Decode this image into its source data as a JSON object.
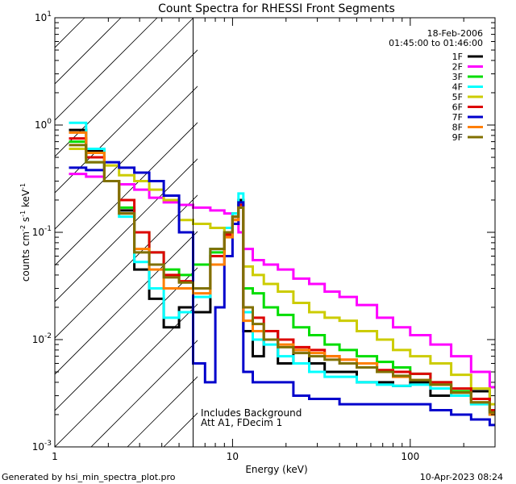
{
  "chart_data": {
    "type": "line",
    "title": "Count Spectra for RHESSI Front Segments",
    "xlabel": "Energy (keV)",
    "ylabel_parts": {
      "base": "counts cm",
      "sup1": "-2",
      "mid1": " s",
      "sup2": "-1",
      "mid2": " keV",
      "sup3": "-1"
    },
    "xscale": "log",
    "yscale": "log",
    "xlim": [
      1,
      300
    ],
    "ylim": [
      0.001,
      10
    ],
    "x_ticks": [
      {
        "value": 1,
        "label": "1"
      },
      {
        "value": 10,
        "label": "10"
      },
      {
        "value": 100,
        "label": "100"
      }
    ],
    "y_ticks": [
      {
        "value": 0.001,
        "base": "10",
        "exp": "-3"
      },
      {
        "value": 0.01,
        "base": "10",
        "exp": "-2"
      },
      {
        "value": 0.1,
        "base": "10",
        "exp": "-1"
      },
      {
        "value": 1,
        "base": "10",
        "exp": "0"
      },
      {
        "value": 10,
        "base": "10",
        "exp": "1"
      }
    ],
    "vertical_line_x": 6,
    "hatched_region": [
      1,
      6
    ],
    "legend_location": "top-right",
    "header_lines": [
      "18-Feb-2006",
      "01:45:00 to 01:46:00"
    ],
    "annotations": [
      "Includes Background",
      "Att A1, FDecim 1"
    ],
    "footer_left": "Generated by hsi_min_spectra_plot.pro",
    "footer_right": "10-Apr-2023 08:24",
    "series": [
      {
        "name": "1F",
        "color": "#000000",
        "points": [
          [
            1.2,
            0.9
          ],
          [
            1.5,
            0.58
          ],
          [
            1.9,
            0.3
          ],
          [
            2.3,
            0.16
          ],
          [
            2.8,
            0.045
          ],
          [
            3.4,
            0.024
          ],
          [
            4.1,
            0.013
          ],
          [
            5,
            0.02
          ],
          [
            6,
            0.018
          ],
          [
            7.5,
            0.07
          ],
          [
            9,
            0.1
          ],
          [
            10,
            0.14
          ],
          [
            10.8,
            0.2
          ],
          [
            11.5,
            0.012
          ],
          [
            13,
            0.007
          ],
          [
            15,
            0.012
          ],
          [
            18,
            0.006
          ],
          [
            22,
            0.008
          ],
          [
            27,
            0.006
          ],
          [
            33,
            0.005
          ],
          [
            40,
            0.005
          ],
          [
            50,
            0.004
          ],
          [
            65,
            0.004
          ],
          [
            80,
            0.0037
          ],
          [
            100,
            0.004
          ],
          [
            130,
            0.003
          ],
          [
            170,
            0.003
          ],
          [
            220,
            0.0033
          ],
          [
            280,
            0.002
          ]
        ]
      },
      {
        "name": "2F",
        "color": "#ff00ff",
        "points": [
          [
            1.2,
            0.35
          ],
          [
            1.5,
            0.33
          ],
          [
            1.9,
            0.3
          ],
          [
            2.3,
            0.28
          ],
          [
            2.8,
            0.25
          ],
          [
            3.4,
            0.21
          ],
          [
            4.1,
            0.19
          ],
          [
            5,
            0.18
          ],
          [
            6,
            0.17
          ],
          [
            7.5,
            0.16
          ],
          [
            9,
            0.15
          ],
          [
            10,
            0.13
          ],
          [
            10.8,
            0.1
          ],
          [
            11.5,
            0.07
          ],
          [
            13,
            0.055
          ],
          [
            15,
            0.05
          ],
          [
            18,
            0.045
          ],
          [
            22,
            0.037
          ],
          [
            27,
            0.033
          ],
          [
            33,
            0.028
          ],
          [
            40,
            0.025
          ],
          [
            50,
            0.021
          ],
          [
            65,
            0.016
          ],
          [
            80,
            0.013
          ],
          [
            100,
            0.011
          ],
          [
            130,
            0.009
          ],
          [
            170,
            0.007
          ],
          [
            220,
            0.005
          ],
          [
            280,
            0.0036
          ]
        ]
      },
      {
        "name": "3F",
        "color": "#00dd00",
        "points": [
          [
            1.2,
            0.7
          ],
          [
            1.5,
            0.45
          ],
          [
            1.9,
            0.3
          ],
          [
            2.3,
            0.17
          ],
          [
            2.8,
            0.1
          ],
          [
            3.4,
            0.065
          ],
          [
            4.1,
            0.045
          ],
          [
            5,
            0.04
          ],
          [
            6,
            0.05
          ],
          [
            7.5,
            0.065
          ],
          [
            9,
            0.1
          ],
          [
            10,
            0.15
          ],
          [
            10.8,
            0.18
          ],
          [
            11.5,
            0.03
          ],
          [
            13,
            0.027
          ],
          [
            15,
            0.02
          ],
          [
            18,
            0.017
          ],
          [
            22,
            0.013
          ],
          [
            27,
            0.011
          ],
          [
            33,
            0.009
          ],
          [
            40,
            0.008
          ],
          [
            50,
            0.007
          ],
          [
            65,
            0.0062
          ],
          [
            80,
            0.0055
          ],
          [
            100,
            0.0048
          ],
          [
            130,
            0.004
          ],
          [
            170,
            0.0033
          ],
          [
            220,
            0.0028
          ],
          [
            280,
            0.0022
          ]
        ]
      },
      {
        "name": "4F",
        "color": "#00ffff",
        "points": [
          [
            1.2,
            1.05
          ],
          [
            1.5,
            0.6
          ],
          [
            1.9,
            0.3
          ],
          [
            2.3,
            0.14
          ],
          [
            2.8,
            0.053
          ],
          [
            3.4,
            0.03
          ],
          [
            4.1,
            0.016
          ],
          [
            5,
            0.018
          ],
          [
            6,
            0.025
          ],
          [
            7.5,
            0.07
          ],
          [
            9,
            0.11
          ],
          [
            10,
            0.15
          ],
          [
            10.8,
            0.23
          ],
          [
            11.5,
            0.018
          ],
          [
            13,
            0.01
          ],
          [
            15,
            0.009
          ],
          [
            18,
            0.007
          ],
          [
            22,
            0.006
          ],
          [
            27,
            0.005
          ],
          [
            33,
            0.0045
          ],
          [
            40,
            0.0045
          ],
          [
            50,
            0.004
          ],
          [
            65,
            0.0038
          ],
          [
            80,
            0.0037
          ],
          [
            100,
            0.0038
          ],
          [
            130,
            0.0035
          ],
          [
            170,
            0.003
          ],
          [
            220,
            0.0025
          ],
          [
            280,
            0.002
          ]
        ]
      },
      {
        "name": "5F",
        "color": "#cccc00",
        "points": [
          [
            1.2,
            0.6
          ],
          [
            1.5,
            0.5
          ],
          [
            1.9,
            0.42
          ],
          [
            2.3,
            0.34
          ],
          [
            2.8,
            0.3
          ],
          [
            3.4,
            0.25
          ],
          [
            4.1,
            0.2
          ],
          [
            5,
            0.13
          ],
          [
            6,
            0.12
          ],
          [
            7.5,
            0.11
          ],
          [
            9,
            0.1
          ],
          [
            10,
            0.13
          ],
          [
            10.8,
            0.17
          ],
          [
            11.5,
            0.048
          ],
          [
            13,
            0.04
          ],
          [
            15,
            0.033
          ],
          [
            18,
            0.028
          ],
          [
            22,
            0.022
          ],
          [
            27,
            0.018
          ],
          [
            33,
            0.016
          ],
          [
            40,
            0.015
          ],
          [
            50,
            0.012
          ],
          [
            65,
            0.01
          ],
          [
            80,
            0.008
          ],
          [
            100,
            0.007
          ],
          [
            130,
            0.006
          ],
          [
            170,
            0.0047
          ],
          [
            220,
            0.0035
          ],
          [
            280,
            0.0025
          ]
        ]
      },
      {
        "name": "6F",
        "color": "#dd0000",
        "points": [
          [
            1.2,
            0.75
          ],
          [
            1.5,
            0.5
          ],
          [
            1.9,
            0.3
          ],
          [
            2.3,
            0.2
          ],
          [
            2.8,
            0.1
          ],
          [
            3.4,
            0.065
          ],
          [
            4.1,
            0.04
          ],
          [
            5,
            0.035
          ],
          [
            6,
            0.03
          ],
          [
            7.5,
            0.06
          ],
          [
            9,
            0.095
          ],
          [
            10,
            0.14
          ],
          [
            10.8,
            0.18
          ],
          [
            11.5,
            0.02
          ],
          [
            13,
            0.016
          ],
          [
            15,
            0.012
          ],
          [
            18,
            0.01
          ],
          [
            22,
            0.0085
          ],
          [
            27,
            0.008
          ],
          [
            33,
            0.007
          ],
          [
            40,
            0.0065
          ],
          [
            50,
            0.006
          ],
          [
            65,
            0.0052
          ],
          [
            80,
            0.005
          ],
          [
            100,
            0.0048
          ],
          [
            130,
            0.004
          ],
          [
            170,
            0.0035
          ],
          [
            220,
            0.0028
          ],
          [
            280,
            0.0022
          ]
        ]
      },
      {
        "name": "7F",
        "color": "#0000cc",
        "points": [
          [
            1.2,
            0.4
          ],
          [
            1.5,
            0.38
          ],
          [
            1.9,
            0.45
          ],
          [
            2.3,
            0.4
          ],
          [
            2.8,
            0.36
          ],
          [
            3.4,
            0.3
          ],
          [
            4.1,
            0.22
          ],
          [
            5,
            0.1
          ],
          [
            6,
            0.006
          ],
          [
            7,
            0.004
          ],
          [
            8,
            0.02
          ],
          [
            9,
            0.06
          ],
          [
            10,
            0.12
          ],
          [
            10.8,
            0.19
          ],
          [
            11.5,
            0.005
          ],
          [
            13,
            0.004
          ],
          [
            15,
            0.004
          ],
          [
            18,
            0.004
          ],
          [
            22,
            0.003
          ],
          [
            27,
            0.0028
          ],
          [
            33,
            0.0028
          ],
          [
            40,
            0.0025
          ],
          [
            50,
            0.0025
          ],
          [
            65,
            0.0025
          ],
          [
            80,
            0.0025
          ],
          [
            100,
            0.0025
          ],
          [
            130,
            0.0022
          ],
          [
            170,
            0.002
          ],
          [
            220,
            0.0018
          ],
          [
            280,
            0.0016
          ]
        ]
      },
      {
        "name": "8F",
        "color": "#ff7f00",
        "points": [
          [
            1.2,
            0.85
          ],
          [
            1.5,
            0.55
          ],
          [
            1.9,
            0.3
          ],
          [
            2.3,
            0.15
          ],
          [
            2.8,
            0.07
          ],
          [
            3.4,
            0.045
          ],
          [
            4.1,
            0.03
          ],
          [
            5,
            0.03
          ],
          [
            6,
            0.027
          ],
          [
            7.5,
            0.05
          ],
          [
            9,
            0.09
          ],
          [
            10,
            0.13
          ],
          [
            10.8,
            0.17
          ],
          [
            11.5,
            0.015
          ],
          [
            13,
            0.012
          ],
          [
            15,
            0.01
          ],
          [
            18,
            0.009
          ],
          [
            22,
            0.008
          ],
          [
            27,
            0.0075
          ],
          [
            33,
            0.007
          ],
          [
            40,
            0.0065
          ],
          [
            50,
            0.006
          ],
          [
            65,
            0.005
          ],
          [
            80,
            0.0045
          ],
          [
            100,
            0.0042
          ],
          [
            130,
            0.0038
          ],
          [
            170,
            0.0032
          ],
          [
            220,
            0.0026
          ],
          [
            280,
            0.002
          ]
        ]
      },
      {
        "name": "9F",
        "color": "#807000",
        "points": [
          [
            1.2,
            0.65
          ],
          [
            1.5,
            0.45
          ],
          [
            1.9,
            0.3
          ],
          [
            2.3,
            0.15
          ],
          [
            2.8,
            0.065
          ],
          [
            3.4,
            0.05
          ],
          [
            4.1,
            0.038
          ],
          [
            5,
            0.034
          ],
          [
            6,
            0.03
          ],
          [
            7.5,
            0.07
          ],
          [
            9,
            0.1
          ],
          [
            10,
            0.14
          ],
          [
            10.8,
            0.17
          ],
          [
            11.5,
            0.02
          ],
          [
            13,
            0.014
          ],
          [
            15,
            0.01
          ],
          [
            18,
            0.0085
          ],
          [
            22,
            0.0075
          ],
          [
            27,
            0.007
          ],
          [
            33,
            0.0065
          ],
          [
            40,
            0.006
          ],
          [
            50,
            0.0055
          ],
          [
            65,
            0.005
          ],
          [
            80,
            0.0046
          ],
          [
            100,
            0.0042
          ],
          [
            130,
            0.0038
          ],
          [
            170,
            0.0032
          ],
          [
            220,
            0.0026
          ],
          [
            280,
            0.0021
          ]
        ]
      }
    ]
  }
}
